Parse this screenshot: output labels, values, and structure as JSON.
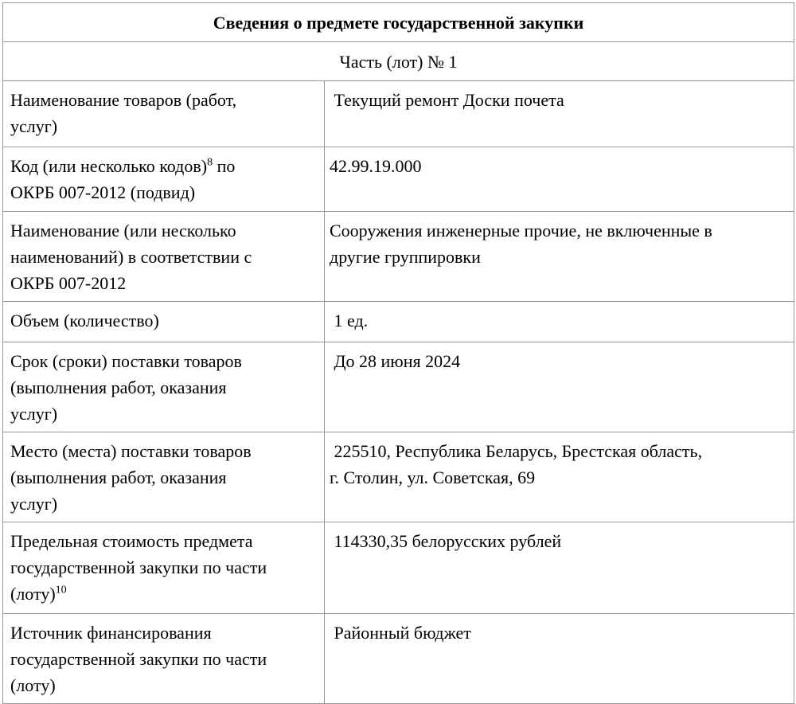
{
  "document": {
    "title": "Сведения о предмете государственной закупки",
    "subtitle": "Часть (лот) № 1"
  },
  "table": {
    "rows": [
      {
        "label": "Наименование товаров (работ,\nуслуг)",
        "value": " Текущий ремонт Доски почета"
      },
      {
        "label_pre": "Код (или несколько кодов)",
        "label_sup": "8",
        "label_post": " по\nОКРБ 007-2012 (подвид)",
        "value": "42.99.19.000"
      },
      {
        "label": "Наименование (или несколько\nнаименований) в соответствии с\nОКРБ 007-2012",
        "value": "Сооружения инженерные прочие, не включенные в\nдругие группировки"
      },
      {
        "label": "Объем (количество)",
        "value": " 1 ед."
      },
      {
        "label": "Срок (сроки) поставки товаров\n(выполнения работ, оказания\nуслуг)",
        "value": " До 28 июня 2024"
      },
      {
        "label": "Место (места) поставки товаров\n(выполнения работ, оказания\nуслуг)",
        "value": " 225510, Республика Беларусь, Брестская область,\nг. Столин, ул. Советская, 69"
      },
      {
        "label_pre": "Предельная стоимость предмета\nгосударственной закупки по части\n(лоту)",
        "label_sup": "10",
        "label_post": "",
        "value": " 114330,35 белорусских рублей"
      },
      {
        "label": "Источник финансирования\nгосударственной закупки по части\n(лоту)",
        "value": " Районный бюджет"
      }
    ]
  },
  "colors": {
    "border": "#979797",
    "text": "#000000",
    "background": "#ffffff"
  }
}
